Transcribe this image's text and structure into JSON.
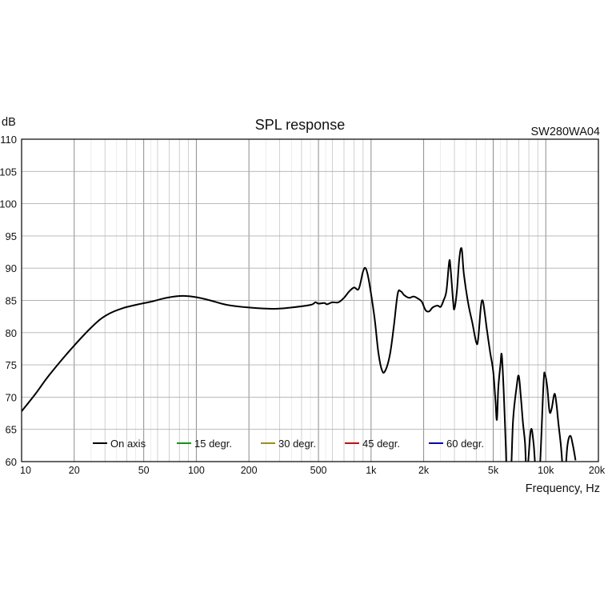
{
  "chart_data": {
    "type": "line",
    "title": "SPL response",
    "model_label": "SW280WA04",
    "ylabel": "dB",
    "xlabel": "Frequency, Hz",
    "x_scale": "log",
    "xlim": [
      10,
      20000
    ],
    "ylim": [
      60,
      110
    ],
    "grid": true,
    "legend_position": "bottom-left",
    "x_ticks": [
      {
        "value": 10,
        "label": "10"
      },
      {
        "value": 20,
        "label": "20"
      },
      {
        "value": 50,
        "label": "50"
      },
      {
        "value": 100,
        "label": "100"
      },
      {
        "value": 200,
        "label": "200"
      },
      {
        "value": 500,
        "label": "500"
      },
      {
        "value": 1000,
        "label": "1k"
      },
      {
        "value": 2000,
        "label": "2k"
      },
      {
        "value": 5000,
        "label": "5k"
      },
      {
        "value": 10000,
        "label": "10k"
      },
      {
        "value": 20000,
        "label": "20k"
      }
    ],
    "y_ticks": [
      60,
      65,
      70,
      75,
      80,
      85,
      90,
      95,
      100,
      105,
      110
    ],
    "legend": [
      {
        "name": "On axis",
        "color": "#000000"
      },
      {
        "name": "15 degr.",
        "color": "#00a000"
      },
      {
        "name": "30 degr.",
        "color": "#a09000"
      },
      {
        "name": "45 degr.",
        "color": "#e00000"
      },
      {
        "name": "60 degr.",
        "color": "#0000c8"
      }
    ],
    "series": [
      {
        "name": "On axis",
        "color": "#000000",
        "points": [
          [
            10,
            67.8
          ],
          [
            12,
            70.5
          ],
          [
            14,
            73.0
          ],
          [
            17,
            75.8
          ],
          [
            20,
            78.0
          ],
          [
            24,
            80.3
          ],
          [
            28,
            82.0
          ],
          [
            32,
            83.0
          ],
          [
            38,
            83.8
          ],
          [
            45,
            84.3
          ],
          [
            55,
            84.8
          ],
          [
            65,
            85.3
          ],
          [
            75,
            85.6
          ],
          [
            85,
            85.7
          ],
          [
            100,
            85.5
          ],
          [
            120,
            85.0
          ],
          [
            150,
            84.3
          ],
          [
            200,
            83.9
          ],
          [
            280,
            83.7
          ],
          [
            350,
            83.9
          ],
          [
            450,
            84.3
          ],
          [
            480,
            84.7
          ],
          [
            500,
            84.5
          ],
          [
            540,
            84.6
          ],
          [
            560,
            84.4
          ],
          [
            600,
            84.7
          ],
          [
            650,
            84.7
          ],
          [
            700,
            85.4
          ],
          [
            750,
            86.4
          ],
          [
            800,
            87.0
          ],
          [
            850,
            86.8
          ],
          [
            900,
            89.5
          ],
          [
            930,
            90.0
          ],
          [
            960,
            88.8
          ],
          [
            1000,
            86.0
          ],
          [
            1050,
            82.0
          ],
          [
            1100,
            77.0
          ],
          [
            1150,
            74.3
          ],
          [
            1200,
            74.0
          ],
          [
            1280,
            76.5
          ],
          [
            1350,
            81.0
          ],
          [
            1420,
            86.0
          ],
          [
            1480,
            86.4
          ],
          [
            1550,
            85.8
          ],
          [
            1650,
            85.4
          ],
          [
            1750,
            85.6
          ],
          [
            1850,
            85.3
          ],
          [
            1950,
            84.8
          ],
          [
            2050,
            83.5
          ],
          [
            2150,
            83.3
          ],
          [
            2250,
            83.9
          ],
          [
            2400,
            84.2
          ],
          [
            2500,
            84.0
          ],
          [
            2600,
            85.0
          ],
          [
            2700,
            86.5
          ],
          [
            2800,
            91.0
          ],
          [
            2850,
            90.0
          ],
          [
            2950,
            84.8
          ],
          [
            3000,
            83.7
          ],
          [
            3100,
            86.5
          ],
          [
            3200,
            91.5
          ],
          [
            3300,
            93.0
          ],
          [
            3400,
            89.0
          ],
          [
            3600,
            84.5
          ],
          [
            3800,
            81.5
          ],
          [
            4000,
            78.5
          ],
          [
            4100,
            79.0
          ],
          [
            4250,
            84.0
          ],
          [
            4350,
            85.0
          ],
          [
            4450,
            83.5
          ],
          [
            4600,
            80.5
          ],
          [
            4800,
            77.0
          ],
          [
            5000,
            74.0
          ],
          [
            5150,
            69.5
          ],
          [
            5250,
            66.5
          ],
          [
            5350,
            71.5
          ],
          [
            5500,
            75.0
          ],
          [
            5600,
            76.5
          ],
          [
            5750,
            70.5
          ],
          [
            5900,
            62.5
          ],
          [
            6000,
            58.0
          ],
          [
            6300,
            58.0
          ],
          [
            6500,
            66.5
          ],
          [
            6800,
            71.5
          ],
          [
            7000,
            73.3
          ],
          [
            7200,
            70.0
          ],
          [
            7400,
            66.0
          ],
          [
            7600,
            63.0
          ],
          [
            7800,
            58.0
          ],
          [
            8200,
            64.8
          ],
          [
            8500,
            63.0
          ],
          [
            8800,
            58.0
          ],
          [
            9200,
            58.0
          ],
          [
            9700,
            72.0
          ],
          [
            9900,
            73.5
          ],
          [
            10200,
            71.5
          ],
          [
            10500,
            67.8
          ],
          [
            10800,
            68.2
          ],
          [
            11200,
            70.5
          ],
          [
            11500,
            69.0
          ],
          [
            11800,
            66.0
          ],
          [
            12200,
            62.5
          ],
          [
            12600,
            58.0
          ],
          [
            12900,
            58.0
          ],
          [
            13300,
            62.5
          ],
          [
            13800,
            64.0
          ],
          [
            14300,
            62.5
          ],
          [
            14800,
            60.2
          ]
        ]
      },
      {
        "name": "15 degr.",
        "color": "#00a000",
        "points": []
      },
      {
        "name": "30 degr.",
        "color": "#a09000",
        "points": []
      },
      {
        "name": "45 degr.",
        "color": "#e00000",
        "points": []
      },
      {
        "name": "60 degr.",
        "color": "#0000c8",
        "points": []
      }
    ]
  }
}
